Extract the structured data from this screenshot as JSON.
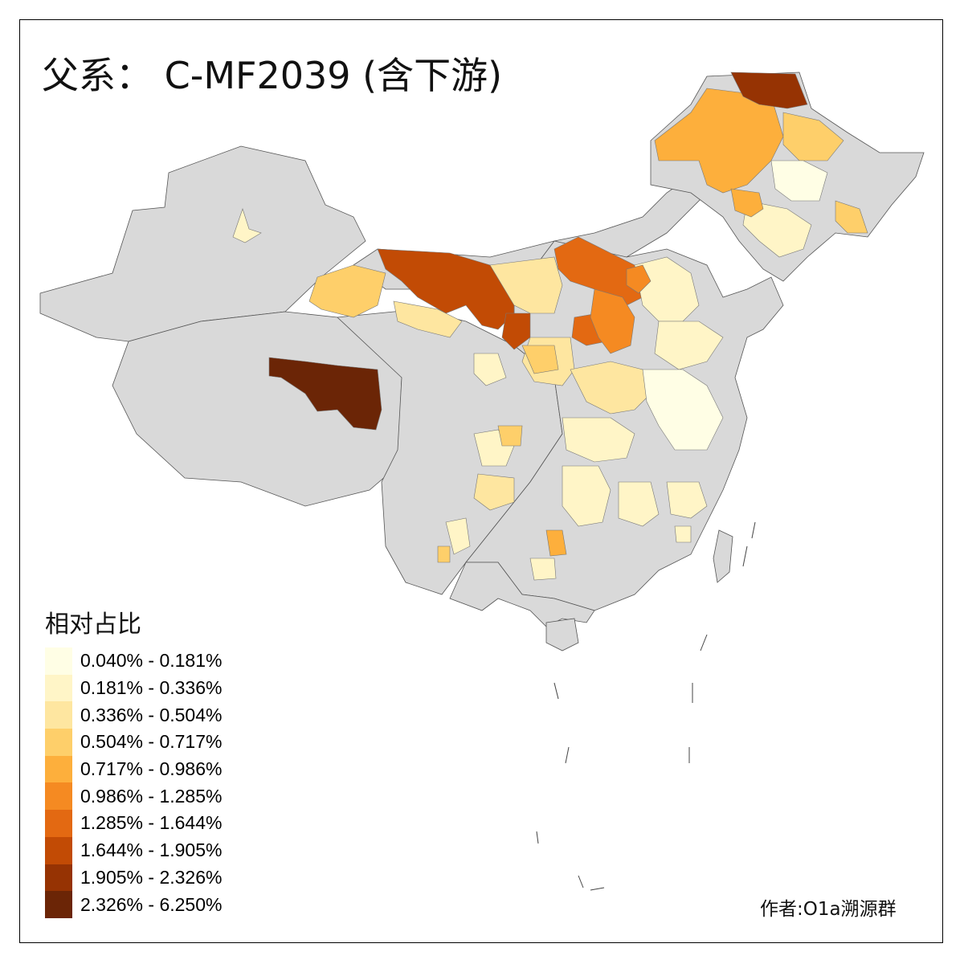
{
  "title": "父系： C-MF2039 (含下游)",
  "legend": {
    "title": "相对占比",
    "items": [
      {
        "label": "0.040% - 0.181%",
        "color": "#FFFEE5"
      },
      {
        "label": "0.181% - 0.336%",
        "color": "#FFF5C7"
      },
      {
        "label": "0.336% - 0.504%",
        "color": "#FEE6A0"
      },
      {
        "label": "0.504% - 0.717%",
        "color": "#FECF6A"
      },
      {
        "label": "0.717% - 0.986%",
        "color": "#FDAF3C"
      },
      {
        "label": "0.986% - 1.285%",
        "color": "#F58A22"
      },
      {
        "label": "1.285% - 1.644%",
        "color": "#E36912"
      },
      {
        "label": "1.644% - 1.905%",
        "color": "#C24B05"
      },
      {
        "label": "1.905% - 2.326%",
        "color": "#963303"
      },
      {
        "label": "2.326% - 6.250%",
        "color": "#6B2506"
      }
    ]
  },
  "credit": "作者:O1a溯源群",
  "no_data_color": "#D9D9D9"
}
